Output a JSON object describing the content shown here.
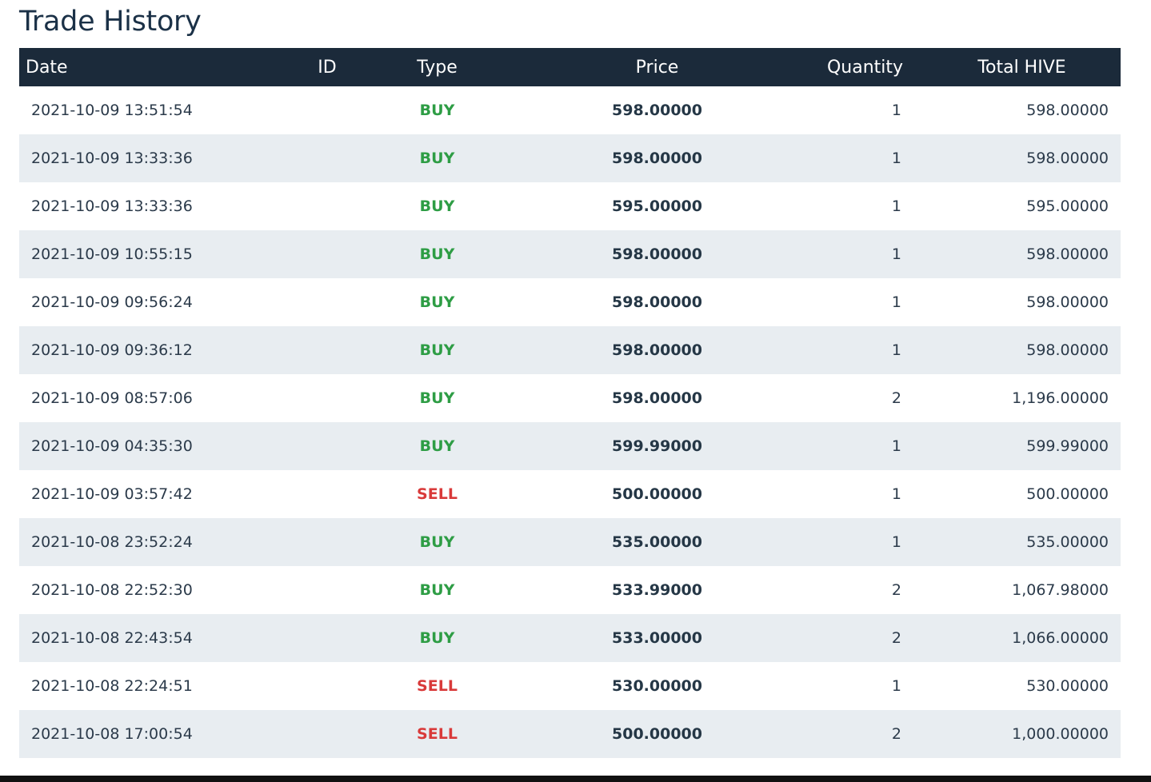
{
  "page": {
    "title": "Trade History"
  },
  "table": {
    "headers": {
      "date": "Date",
      "id": "ID",
      "type": "Type",
      "price": "Price",
      "quantity": "Quantity",
      "total": "Total HIVE"
    },
    "rows": [
      {
        "date": "2021-10-09 13:51:54",
        "id": "",
        "type": "BUY",
        "price": "598.00000",
        "quantity": "1",
        "total": "598.00000"
      },
      {
        "date": "2021-10-09 13:33:36",
        "id": "",
        "type": "BUY",
        "price": "598.00000",
        "quantity": "1",
        "total": "598.00000"
      },
      {
        "date": "2021-10-09 13:33:36",
        "id": "",
        "type": "BUY",
        "price": "595.00000",
        "quantity": "1",
        "total": "595.00000"
      },
      {
        "date": "2021-10-09 10:55:15",
        "id": "",
        "type": "BUY",
        "price": "598.00000",
        "quantity": "1",
        "total": "598.00000"
      },
      {
        "date": "2021-10-09 09:56:24",
        "id": "",
        "type": "BUY",
        "price": "598.00000",
        "quantity": "1",
        "total": "598.00000"
      },
      {
        "date": "2021-10-09 09:36:12",
        "id": "",
        "type": "BUY",
        "price": "598.00000",
        "quantity": "1",
        "total": "598.00000"
      },
      {
        "date": "2021-10-09 08:57:06",
        "id": "",
        "type": "BUY",
        "price": "598.00000",
        "quantity": "2",
        "total": "1,196.00000"
      },
      {
        "date": "2021-10-09 04:35:30",
        "id": "",
        "type": "BUY",
        "price": "599.99000",
        "quantity": "1",
        "total": "599.99000"
      },
      {
        "date": "2021-10-09 03:57:42",
        "id": "",
        "type": "SELL",
        "price": "500.00000",
        "quantity": "1",
        "total": "500.00000"
      },
      {
        "date": "2021-10-08 23:52:24",
        "id": "",
        "type": "BUY",
        "price": "535.00000",
        "quantity": "1",
        "total": "535.00000"
      },
      {
        "date": "2021-10-08 22:52:30",
        "id": "",
        "type": "BUY",
        "price": "533.99000",
        "quantity": "2",
        "total": "1,067.98000"
      },
      {
        "date": "2021-10-08 22:43:54",
        "id": "",
        "type": "BUY",
        "price": "533.00000",
        "quantity": "2",
        "total": "1,066.00000"
      },
      {
        "date": "2021-10-08 22:24:51",
        "id": "",
        "type": "SELL",
        "price": "530.00000",
        "quantity": "1",
        "total": "530.00000"
      },
      {
        "date": "2021-10-08 17:00:54",
        "id": "",
        "type": "SELL",
        "price": "500.00000",
        "quantity": "2",
        "total": "1,000.00000"
      }
    ]
  },
  "colors": {
    "header_bg": "#1b2a3a",
    "row_alt_bg": "#e8edf1",
    "buy": "#2e9d45",
    "sell": "#d93a3a",
    "title": "#1b3147"
  }
}
